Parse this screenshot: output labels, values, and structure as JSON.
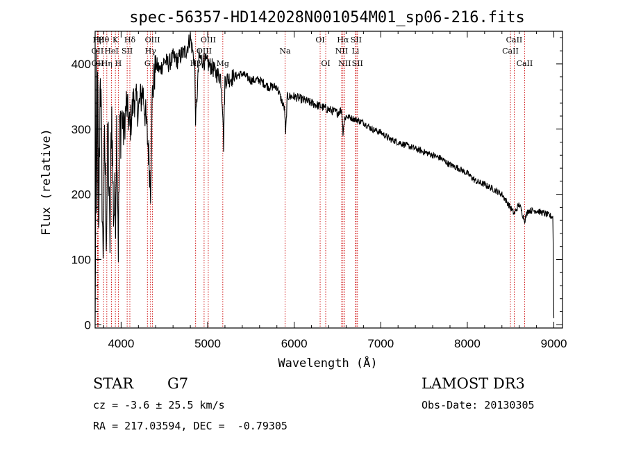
{
  "chart_data": {
    "type": "line",
    "title": "spec-56357-HD142028N001054M01_sp06-216.fits",
    "xlabel": "Wavelength (Å)",
    "ylabel": "Flux (relative)",
    "xlim": [
      3700,
      9100
    ],
    "ylim": [
      -5,
      450
    ],
    "xticks": [
      4000,
      5000,
      6000,
      7000,
      8000,
      9000
    ],
    "yticks": [
      0,
      100,
      200,
      300,
      400
    ],
    "series": [
      {
        "name": "flux",
        "anchors": [
          [
            3700,
            5
          ],
          [
            3712,
            360
          ],
          [
            3720,
            150
          ],
          [
            3730,
            390
          ],
          [
            3740,
            120
          ],
          [
            3760,
            410
          ],
          [
            3790,
            100
          ],
          [
            3810,
            280
          ],
          [
            3830,
            140
          ],
          [
            3850,
            300
          ],
          [
            3870,
            110
          ],
          [
            3890,
            340
          ],
          [
            3910,
            180
          ],
          [
            3935,
            180
          ],
          [
            3950,
            320
          ],
          [
            3968,
            130
          ],
          [
            3985,
            290
          ],
          [
            4005,
            330
          ],
          [
            4030,
            290
          ],
          [
            4060,
            340
          ],
          [
            4101,
            300
          ],
          [
            4150,
            350
          ],
          [
            4200,
            330
          ],
          [
            4250,
            360
          ],
          [
            4290,
            310
          ],
          [
            4320,
            260
          ],
          [
            4340,
            210
          ],
          [
            4360,
            350
          ],
          [
            4400,
            400
          ],
          [
            4450,
            390
          ],
          [
            4500,
            405
          ],
          [
            4550,
            400
          ],
          [
            4600,
            410
          ],
          [
            4650,
            405
          ],
          [
            4700,
            415
          ],
          [
            4750,
            420
          ],
          [
            4800,
            440
          ],
          [
            4850,
            400
          ],
          [
            4861,
            310
          ],
          [
            4900,
            410
          ],
          [
            4950,
            405
          ],
          [
            5000,
            400
          ],
          [
            5050,
            395
          ],
          [
            5100,
            385
          ],
          [
            5150,
            380
          ],
          [
            5175,
            330
          ],
          [
            5183,
            270
          ],
          [
            5200,
            375
          ],
          [
            5300,
            380
          ],
          [
            5400,
            385
          ],
          [
            5500,
            375
          ],
          [
            5600,
            375
          ],
          [
            5700,
            365
          ],
          [
            5800,
            365
          ],
          [
            5890,
            330
          ],
          [
            5900,
            290
          ],
          [
            5920,
            350
          ],
          [
            6000,
            350
          ],
          [
            6100,
            345
          ],
          [
            6200,
            340
          ],
          [
            6300,
            335
          ],
          [
            6400,
            330
          ],
          [
            6500,
            325
          ],
          [
            6550,
            330
          ],
          [
            6563,
            295
          ],
          [
            6580,
            315
          ],
          [
            6600,
            320
          ],
          [
            6700,
            315
          ],
          [
            6800,
            310
          ],
          [
            6900,
            300
          ],
          [
            7000,
            295
          ],
          [
            7100,
            285
          ],
          [
            7200,
            280
          ],
          [
            7300,
            275
          ],
          [
            7400,
            270
          ],
          [
            7500,
            265
          ],
          [
            7600,
            260
          ],
          [
            7700,
            255
          ],
          [
            7800,
            245
          ],
          [
            7900,
            240
          ],
          [
            8000,
            232
          ],
          [
            8100,
            220
          ],
          [
            8200,
            215
          ],
          [
            8300,
            208
          ],
          [
            8400,
            200
          ],
          [
            8498,
            180
          ],
          [
            8542,
            170
          ],
          [
            8600,
            185
          ],
          [
            8662,
            160
          ],
          [
            8700,
            175
          ],
          [
            8800,
            175
          ],
          [
            8900,
            170
          ],
          [
            8990,
            165
          ],
          [
            9000,
            10
          ]
        ]
      }
    ],
    "lines": [
      {
        "label": "Hβ",
        "wavelength": 3736,
        "row": 1
      },
      {
        "label": "OII",
        "wavelength": 3727,
        "row": 2
      },
      {
        "label": "OII",
        "wavelength": 3729,
        "row": 3
      },
      {
        "label": "Hθ",
        "wavelength": 3798,
        "row": 1
      },
      {
        "label": "Hη",
        "wavelength": 3835,
        "row": 3
      },
      {
        "label": "HeI",
        "wavelength": 3889,
        "row": 2
      },
      {
        "label": "K",
        "wavelength": 3934,
        "row": 1
      },
      {
        "label": "H",
        "wavelength": 3968,
        "row": 3
      },
      {
        "label": "SII",
        "wavelength": 4070,
        "row": 2
      },
      {
        "label": "Hδ",
        "wavelength": 4101,
        "row": 1
      },
      {
        "label": "G",
        "wavelength": 4304,
        "row": 3
      },
      {
        "label": "Hγ",
        "wavelength": 4340,
        "row": 2
      },
      {
        "label": "OIII",
        "wavelength": 4363,
        "row": 1
      },
      {
        "label": "Hβ",
        "wavelength": 4861,
        "row": 3
      },
      {
        "label": "OIII",
        "wavelength": 4959,
        "row": 2
      },
      {
        "label": "OIII",
        "wavelength": 5007,
        "row": 1
      },
      {
        "label": "Mg",
        "wavelength": 5175,
        "row": 3
      },
      {
        "label": "Na",
        "wavelength": 5894,
        "row": 2
      },
      {
        "label": "OI",
        "wavelength": 6300,
        "row": 1
      },
      {
        "label": "OI",
        "wavelength": 6364,
        "row": 3
      },
      {
        "label": "NII",
        "wavelength": 6548,
        "row": 2
      },
      {
        "label": "Hα",
        "wavelength": 6563,
        "row": 1
      },
      {
        "label": "NII",
        "wavelength": 6583,
        "row": 3
      },
      {
        "label": "SII",
        "wavelength": 6716,
        "row": 1
      },
      {
        "label": "Li",
        "wavelength": 6708,
        "row": 2
      },
      {
        "label": "SII",
        "wavelength": 6731,
        "row": 3
      },
      {
        "label": "CaII",
        "wavelength": 8498,
        "row": 2
      },
      {
        "label": "CaII",
        "wavelength": 8542,
        "row": 1
      },
      {
        "label": "CaII",
        "wavelength": 8662,
        "row": 3
      }
    ]
  },
  "footer": {
    "object_class": "STAR",
    "subclass": "G7",
    "survey": "LAMOST DR3",
    "cz": "cz = -3.6 ± 25.5 km/s",
    "obs_date": "Obs-Date: 20130305",
    "coords": "RA = 217.03594, DEC =  -0.79305"
  },
  "colors": {
    "line_marker": "#cc0000",
    "spectrum": "#000000"
  }
}
